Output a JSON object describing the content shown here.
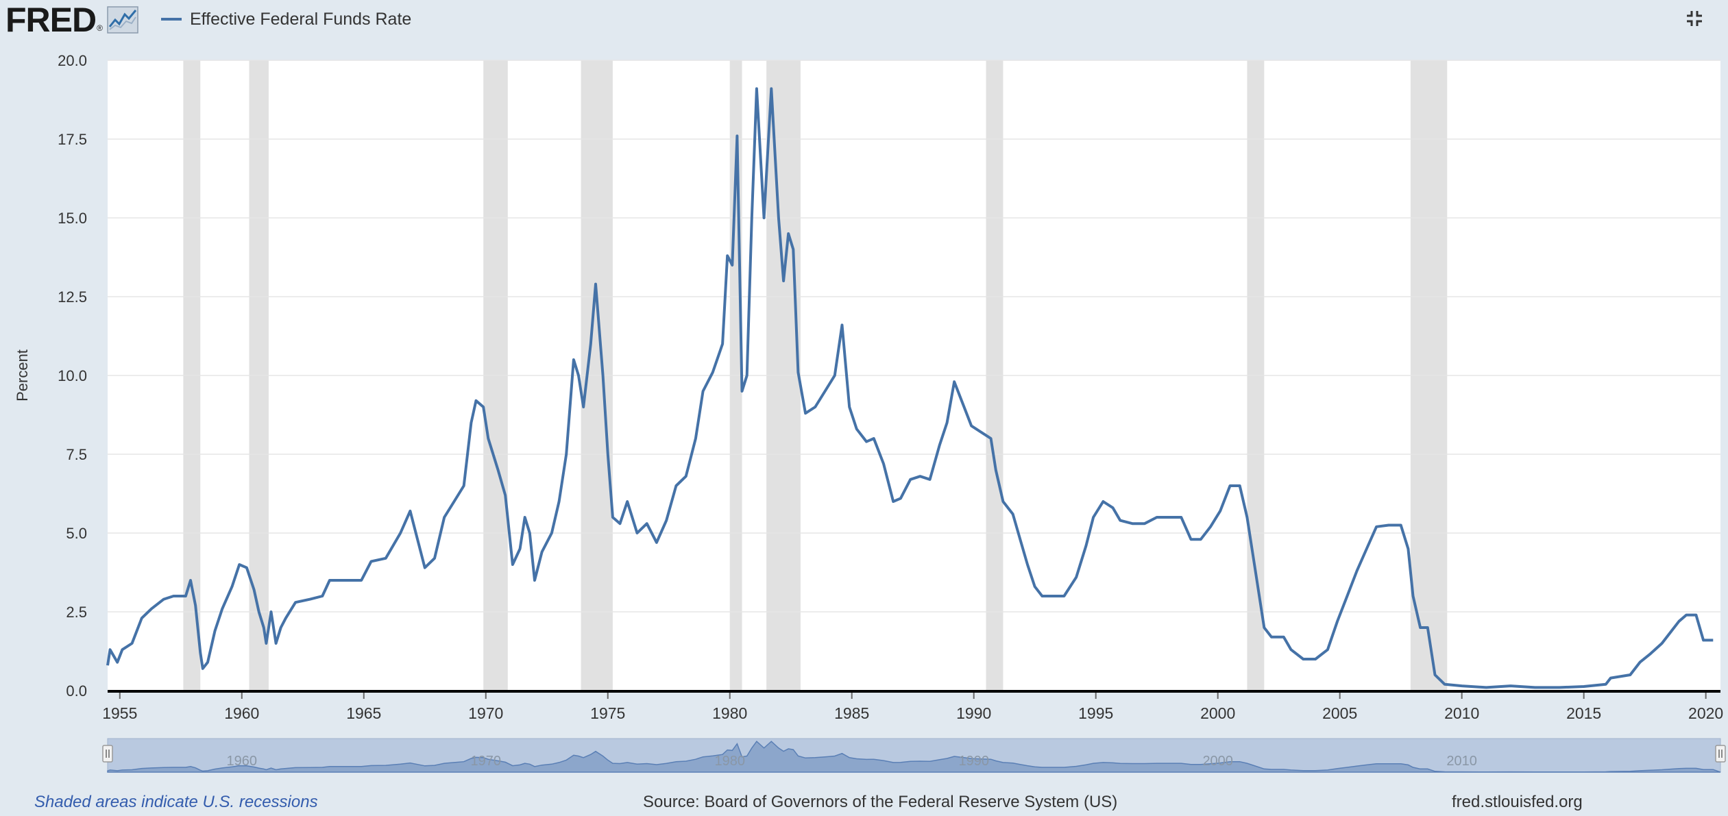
{
  "header": {
    "logo_text": "FRED",
    "logo_registered": "®",
    "legend_label": "Effective Federal Funds Rate",
    "fullscreen_icon": "collapse-fullscreen-icon"
  },
  "footer": {
    "recession_note": "Shaded areas indicate U.S. recessions",
    "source": "Source: Board of Governors of the Federal Reserve System (US)",
    "url": "fred.stlouisfed.org"
  },
  "colors": {
    "series": "#4572a7",
    "recession": "#e1e1e1",
    "background": "#e1e9f0",
    "plot": "#ffffff",
    "grid": "#e6e6e6",
    "navigator_fill": "#b9c9e0",
    "navigator_series": "#7d99c4",
    "footer_link": "#335cad"
  },
  "chart_data": {
    "type": "line",
    "title": "",
    "xlabel": "",
    "ylabel": "Percent",
    "x_domain": [
      1954.5,
      2020.6
    ],
    "ylim": [
      0,
      20
    ],
    "y_ticks": [
      "0.0",
      "2.5",
      "5.0",
      "7.5",
      "10.0",
      "12.5",
      "15.0",
      "17.5",
      "20.0"
    ],
    "x_ticks": [
      "1955",
      "1960",
      "1965",
      "1970",
      "1975",
      "1980",
      "1985",
      "1990",
      "1995",
      "2000",
      "2005",
      "2010",
      "2015",
      "2020"
    ],
    "navigator_labels": [
      "1960",
      "1970",
      "1980",
      "1990",
      "2000",
      "2010"
    ],
    "grid": true,
    "legend_position": "top-left",
    "recessions": [
      [
        1957.6,
        1958.3
      ],
      [
        1960.3,
        1961.1
      ],
      [
        1969.9,
        1970.9
      ],
      [
        1973.9,
        1975.2
      ],
      [
        1980.0,
        1980.5
      ],
      [
        1981.5,
        1982.9
      ],
      [
        1990.5,
        1991.2
      ],
      [
        2001.2,
        2001.9
      ],
      [
        2007.9,
        2009.4
      ]
    ],
    "series": [
      {
        "name": "Effective Federal Funds Rate",
        "points": [
          [
            1954.5,
            0.8
          ],
          [
            1954.6,
            1.3
          ],
          [
            1954.9,
            0.9
          ],
          [
            1955.1,
            1.3
          ],
          [
            1955.5,
            1.5
          ],
          [
            1955.9,
            2.3
          ],
          [
            1956.3,
            2.6
          ],
          [
            1956.8,
            2.9
          ],
          [
            1957.2,
            3.0
          ],
          [
            1957.7,
            3.0
          ],
          [
            1957.9,
            3.5
          ],
          [
            1958.1,
            2.7
          ],
          [
            1958.3,
            1.2
          ],
          [
            1958.4,
            0.7
          ],
          [
            1958.6,
            0.9
          ],
          [
            1958.9,
            1.9
          ],
          [
            1959.2,
            2.6
          ],
          [
            1959.6,
            3.3
          ],
          [
            1959.9,
            4.0
          ],
          [
            1960.2,
            3.9
          ],
          [
            1960.5,
            3.2
          ],
          [
            1960.7,
            2.5
          ],
          [
            1960.9,
            2.0
          ],
          [
            1961.0,
            1.5
          ],
          [
            1961.2,
            2.5
          ],
          [
            1961.4,
            1.5
          ],
          [
            1961.6,
            2.0
          ],
          [
            1961.8,
            2.3
          ],
          [
            1962.2,
            2.8
          ],
          [
            1962.8,
            2.9
          ],
          [
            1963.3,
            3.0
          ],
          [
            1963.6,
            3.5
          ],
          [
            1964.3,
            3.5
          ],
          [
            1964.9,
            3.5
          ],
          [
            1965.3,
            4.1
          ],
          [
            1965.9,
            4.2
          ],
          [
            1966.5,
            5.0
          ],
          [
            1966.9,
            5.7
          ],
          [
            1967.2,
            4.8
          ],
          [
            1967.5,
            3.9
          ],
          [
            1967.9,
            4.2
          ],
          [
            1968.3,
            5.5
          ],
          [
            1968.7,
            6.0
          ],
          [
            1969.1,
            6.5
          ],
          [
            1969.4,
            8.5
          ],
          [
            1969.6,
            9.2
          ],
          [
            1969.9,
            9.0
          ],
          [
            1970.1,
            8.0
          ],
          [
            1970.5,
            7.0
          ],
          [
            1970.8,
            6.2
          ],
          [
            1971.1,
            4.0
          ],
          [
            1971.4,
            4.5
          ],
          [
            1971.6,
            5.5
          ],
          [
            1971.8,
            5.0
          ],
          [
            1972.0,
            3.5
          ],
          [
            1972.3,
            4.4
          ],
          [
            1972.7,
            5.0
          ],
          [
            1973.0,
            6.0
          ],
          [
            1973.3,
            7.5
          ],
          [
            1973.6,
            10.5
          ],
          [
            1973.8,
            10.0
          ],
          [
            1974.0,
            9.0
          ],
          [
            1974.3,
            11.0
          ],
          [
            1974.5,
            12.9
          ],
          [
            1974.8,
            10.0
          ],
          [
            1975.0,
            7.5
          ],
          [
            1975.2,
            5.5
          ],
          [
            1975.5,
            5.3
          ],
          [
            1975.8,
            6.0
          ],
          [
            1976.2,
            5.0
          ],
          [
            1976.6,
            5.3
          ],
          [
            1977.0,
            4.7
          ],
          [
            1977.4,
            5.4
          ],
          [
            1977.8,
            6.5
          ],
          [
            1978.2,
            6.8
          ],
          [
            1978.6,
            8.0
          ],
          [
            1978.9,
            9.5
          ],
          [
            1979.3,
            10.1
          ],
          [
            1979.7,
            11.0
          ],
          [
            1979.9,
            13.8
          ],
          [
            1980.1,
            13.5
          ],
          [
            1980.3,
            17.6
          ],
          [
            1980.5,
            9.5
          ],
          [
            1980.7,
            10.0
          ],
          [
            1980.9,
            15.0
          ],
          [
            1981.1,
            19.1
          ],
          [
            1981.4,
            15.0
          ],
          [
            1981.7,
            19.1
          ],
          [
            1982.0,
            15.0
          ],
          [
            1982.2,
            13.0
          ],
          [
            1982.4,
            14.5
          ],
          [
            1982.6,
            14.0
          ],
          [
            1982.8,
            10.1
          ],
          [
            1983.1,
            8.8
          ],
          [
            1983.5,
            9.0
          ],
          [
            1983.9,
            9.5
          ],
          [
            1984.3,
            10.0
          ],
          [
            1984.6,
            11.6
          ],
          [
            1984.9,
            9.0
          ],
          [
            1985.2,
            8.3
          ],
          [
            1985.6,
            7.9
          ],
          [
            1985.9,
            8.0
          ],
          [
            1986.3,
            7.2
          ],
          [
            1986.7,
            6.0
          ],
          [
            1987.0,
            6.1
          ],
          [
            1987.4,
            6.7
          ],
          [
            1987.8,
            6.8
          ],
          [
            1988.2,
            6.7
          ],
          [
            1988.6,
            7.8
          ],
          [
            1988.9,
            8.5
          ],
          [
            1989.2,
            9.8
          ],
          [
            1989.6,
            9.0
          ],
          [
            1989.9,
            8.4
          ],
          [
            1990.3,
            8.2
          ],
          [
            1990.7,
            8.0
          ],
          [
            1990.9,
            7.0
          ],
          [
            1991.2,
            6.0
          ],
          [
            1991.6,
            5.6
          ],
          [
            1991.9,
            4.8
          ],
          [
            1992.2,
            4.0
          ],
          [
            1992.5,
            3.3
          ],
          [
            1992.8,
            3.0
          ],
          [
            1993.2,
            3.0
          ],
          [
            1993.7,
            3.0
          ],
          [
            1994.2,
            3.6
          ],
          [
            1994.6,
            4.6
          ],
          [
            1994.9,
            5.5
          ],
          [
            1995.3,
            6.0
          ],
          [
            1995.7,
            5.8
          ],
          [
            1996.0,
            5.4
          ],
          [
            1996.5,
            5.3
          ],
          [
            1997.0,
            5.3
          ],
          [
            1997.5,
            5.5
          ],
          [
            1998.0,
            5.5
          ],
          [
            1998.5,
            5.5
          ],
          [
            1998.9,
            4.8
          ],
          [
            1999.3,
            4.8
          ],
          [
            1999.7,
            5.2
          ],
          [
            2000.1,
            5.7
          ],
          [
            2000.5,
            6.5
          ],
          [
            2000.9,
            6.5
          ],
          [
            2001.2,
            5.5
          ],
          [
            2001.5,
            4.0
          ],
          [
            2001.9,
            2.0
          ],
          [
            2002.2,
            1.7
          ],
          [
            2002.7,
            1.7
          ],
          [
            2003.0,
            1.3
          ],
          [
            2003.5,
            1.0
          ],
          [
            2004.0,
            1.0
          ],
          [
            2004.5,
            1.3
          ],
          [
            2004.9,
            2.2
          ],
          [
            2005.3,
            3.0
          ],
          [
            2005.7,
            3.8
          ],
          [
            2006.1,
            4.5
          ],
          [
            2006.5,
            5.2
          ],
          [
            2007.0,
            5.25
          ],
          [
            2007.5,
            5.25
          ],
          [
            2007.8,
            4.5
          ],
          [
            2008.0,
            3.0
          ],
          [
            2008.3,
            2.0
          ],
          [
            2008.6,
            2.0
          ],
          [
            2008.9,
            0.5
          ],
          [
            2009.3,
            0.2
          ],
          [
            2010.0,
            0.15
          ],
          [
            2011.0,
            0.1
          ],
          [
            2012.0,
            0.15
          ],
          [
            2013.0,
            0.1
          ],
          [
            2014.0,
            0.1
          ],
          [
            2015.0,
            0.13
          ],
          [
            2015.9,
            0.2
          ],
          [
            2016.1,
            0.4
          ],
          [
            2016.9,
            0.5
          ],
          [
            2017.3,
            0.9
          ],
          [
            2017.7,
            1.15
          ],
          [
            2018.2,
            1.5
          ],
          [
            2018.6,
            1.9
          ],
          [
            2018.9,
            2.2
          ],
          [
            2019.2,
            2.4
          ],
          [
            2019.6,
            2.4
          ],
          [
            2019.9,
            1.6
          ],
          [
            2020.3,
            1.6
          ]
        ]
      }
    ]
  }
}
